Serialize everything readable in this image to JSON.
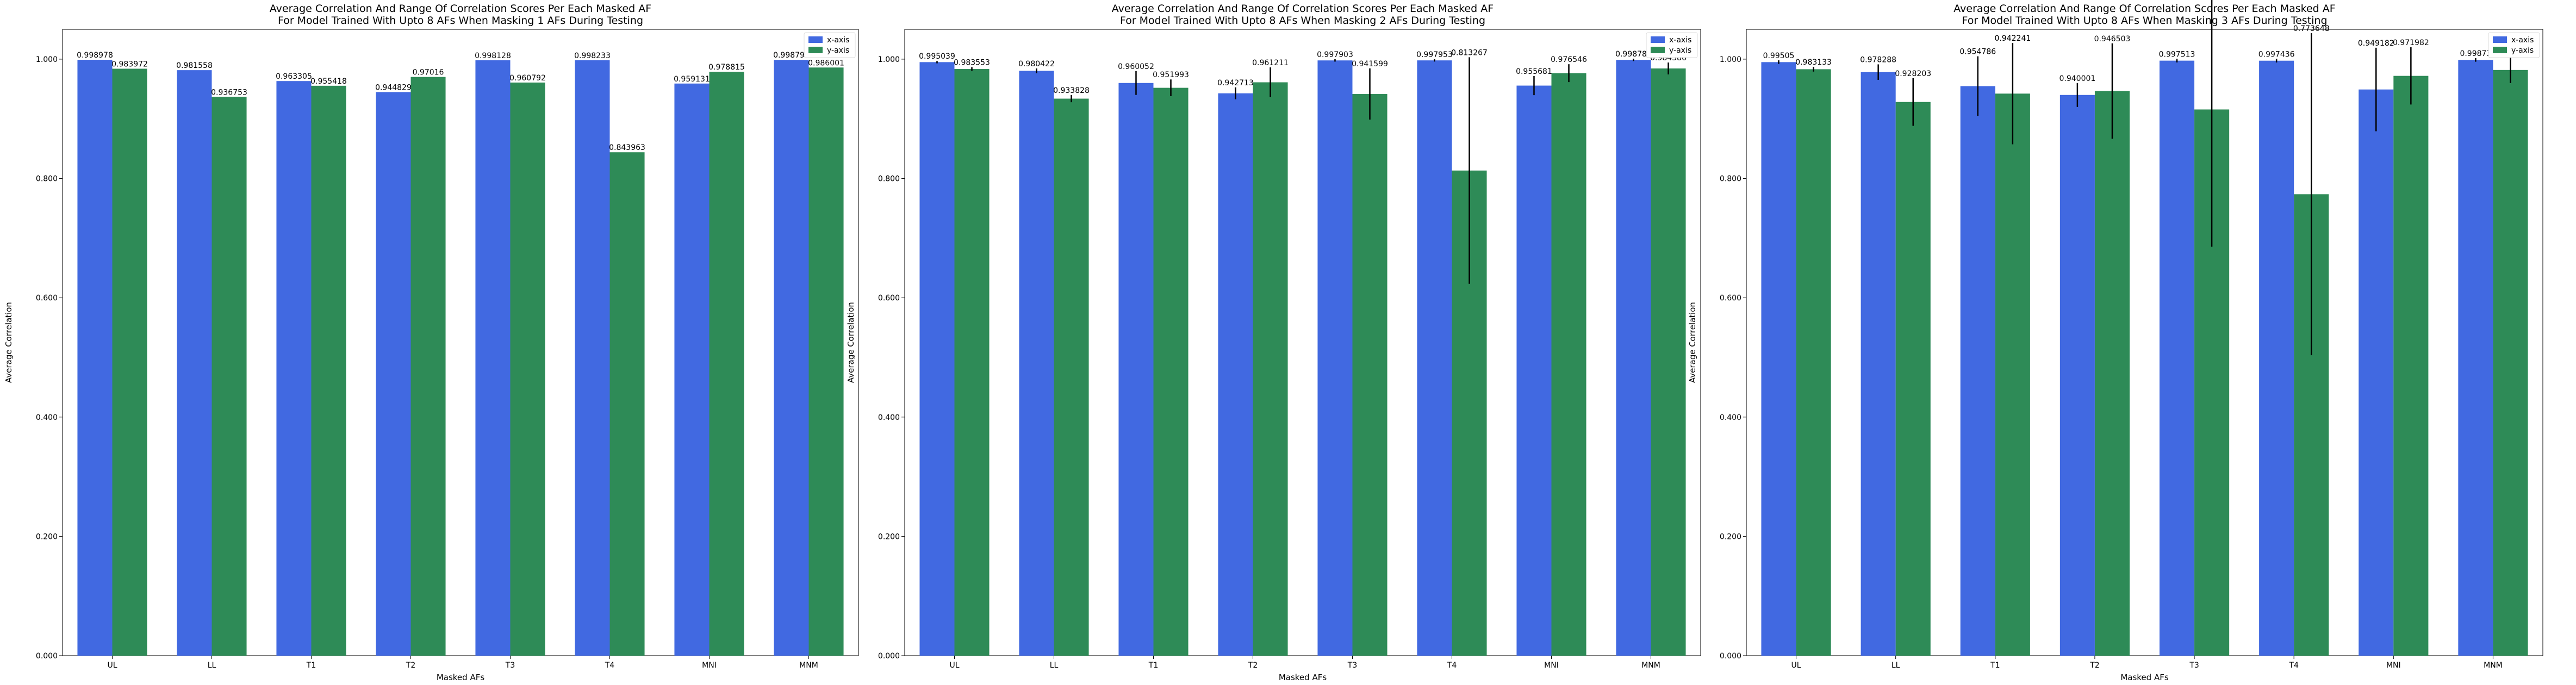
{
  "colors": {
    "x_axis": "#4169E1",
    "y_axis": "#2E8B57",
    "errorbar": "#000000"
  },
  "chart_data": [
    {
      "type": "bar",
      "title": "Average Correlation And Range Of Correlation Scores Per Each Masked AF",
      "subtitle": "For Model Trained With Upto 8 AFs When Masking 1 AFs During Testing",
      "xlabel": "Masked AFs",
      "ylabel": "Average Correlation",
      "ylim": [
        0,
        1.05
      ],
      "yticks": [
        "0.000",
        "0.200",
        "0.400",
        "0.600",
        "0.800",
        "1.000"
      ],
      "categories": [
        "UL",
        "LL",
        "T1",
        "T2",
        "T3",
        "T4",
        "MNI",
        "MNM"
      ],
      "legend_position": "top-right",
      "series": [
        {
          "name": "x-axis",
          "values": [
            0.998978,
            0.981558,
            0.963305,
            0.944829,
            0.998128,
            0.998233,
            0.959131,
            0.998791
          ],
          "labels": [
            "0.998978",
            "0.981558",
            "0.963305",
            "0.944829",
            "0.998128",
            "0.998233",
            "0.959131",
            "0.998791"
          ],
          "err": [
            0,
            0,
            0,
            0,
            0,
            0,
            0,
            0
          ]
        },
        {
          "name": "y-axis",
          "values": [
            0.983972,
            0.936753,
            0.955418,
            0.97016,
            0.960792,
            0.843963,
            0.978815,
            0.986001
          ],
          "labels": [
            "0.983972",
            "0.936753",
            "0.955418",
            "0.97016",
            "0.960792",
            "0.843963",
            "0.978815",
            "0.986001"
          ],
          "err": [
            0,
            0,
            0,
            0,
            0,
            0,
            0,
            0
          ]
        }
      ]
    },
    {
      "type": "bar",
      "title": "Average Correlation And Range Of Correlation Scores Per Each Masked AF",
      "subtitle": "For Model Trained With Upto 8 AFs When Masking 2 AFs During Testing",
      "xlabel": "Masked AFs",
      "ylabel": "Average Correlation",
      "ylim": [
        0,
        1.05
      ],
      "yticks": [
        "0.000",
        "0.200",
        "0.400",
        "0.600",
        "0.800",
        "1.000"
      ],
      "categories": [
        "UL",
        "LL",
        "T1",
        "T2",
        "T3",
        "T4",
        "MNI",
        "MNM"
      ],
      "legend_position": "top-right",
      "series": [
        {
          "name": "x-axis",
          "values": [
            0.995039,
            0.980422,
            0.960052,
            0.942713,
            0.997903,
            0.997953,
            0.955681,
            0.998785
          ],
          "labels": [
            "0.995039",
            "0.980422",
            "0.960052",
            "0.942713",
            "0.997903",
            "0.997953",
            "0.955681",
            "0.998785"
          ],
          "err": [
            0.002,
            0.004,
            0.02,
            0.01,
            0.002,
            0.002,
            0.016,
            0.002
          ]
        },
        {
          "name": "y-axis",
          "values": [
            0.983553,
            0.933828,
            0.951993,
            0.961211,
            0.941599,
            0.813267,
            0.976546,
            0.984386
          ],
          "labels": [
            "0.983553",
            "0.933828",
            "0.951993",
            "0.961211",
            "0.941599",
            "0.813267",
            "0.976546",
            "0.984386"
          ],
          "err": [
            0.003,
            0.006,
            0.014,
            0.025,
            0.043,
            0.19,
            0.015,
            0.01
          ]
        }
      ]
    },
    {
      "type": "bar",
      "title": "Average Correlation And Range Of Correlation Scores Per Each Masked AF",
      "subtitle": "For Model Trained With Upto 8 AFs When Masking 3 AFs During Testing",
      "xlabel": "Masked AFs",
      "ylabel": "Average Correlation",
      "ylim": [
        0,
        1.05
      ],
      "yticks": [
        "0.000",
        "0.200",
        "0.400",
        "0.600",
        "0.800",
        "1.000"
      ],
      "categories": [
        "UL",
        "LL",
        "T1",
        "T2",
        "T3",
        "T4",
        "MNI",
        "MNM"
      ],
      "legend_position": "top-right",
      "series": [
        {
          "name": "x-axis",
          "values": [
            0.99505,
            0.978288,
            0.954786,
            0.940001,
            0.997513,
            0.997436,
            0.949182,
            0.99873
          ],
          "labels": [
            "0.99505",
            "0.978288",
            "0.954786",
            "0.940001",
            "0.997513",
            "0.997436",
            "0.949182",
            "0.99873"
          ],
          "err": [
            0.003,
            0.013,
            0.05,
            0.02,
            0.003,
            0.003,
            0.07,
            0.003
          ]
        },
        {
          "name": "y-axis",
          "values": [
            0.983133,
            0.928203,
            0.942241,
            0.946503,
            0.915688,
            0.773648,
            0.971982,
            0.98185
          ],
          "labels": [
            "0.983133",
            "0.928203",
            "0.942241",
            "0.946503",
            "0.915688",
            "0.773648",
            "0.971982",
            "0.98185"
          ],
          "err": [
            0.004,
            0.04,
            0.085,
            0.08,
            0.23,
            0.27,
            0.048,
            0.022
          ]
        }
      ]
    }
  ]
}
